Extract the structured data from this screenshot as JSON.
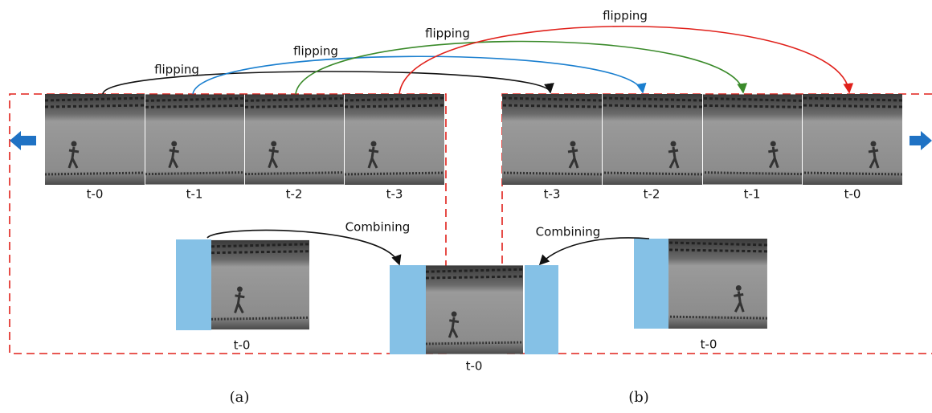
{
  "flip_labels": [
    "flipping",
    "flipping",
    "flipping",
    "flipping"
  ],
  "combine_labels": [
    "Combining",
    "Combining"
  ],
  "left_frames": [
    "t-0",
    "t-1",
    "t-2",
    "t-3"
  ],
  "right_frames": [
    "t-3",
    "t-2",
    "t-1",
    "t-0"
  ],
  "bottom_frames": [
    "t-0",
    "t-0",
    "t-0"
  ],
  "panels": [
    "(a)",
    "(b)"
  ]
}
